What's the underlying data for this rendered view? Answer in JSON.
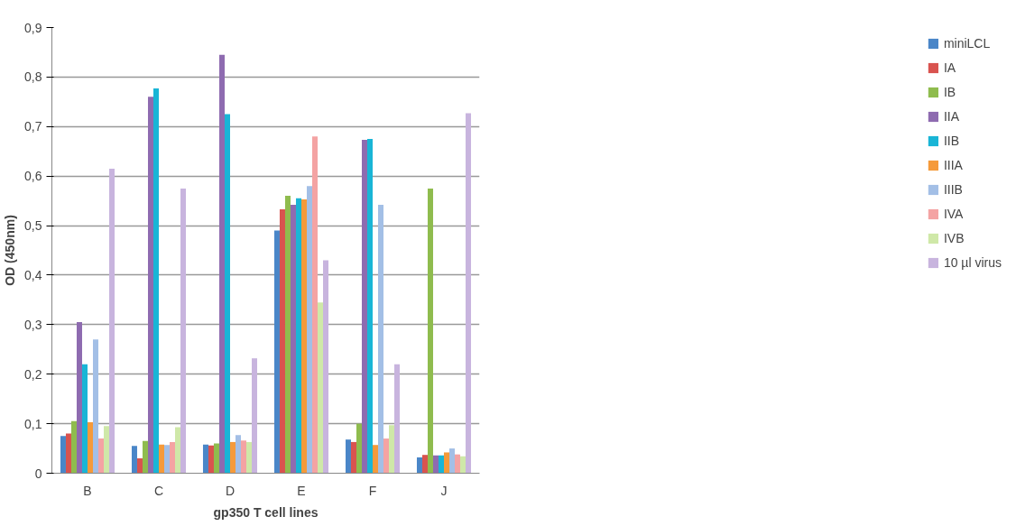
{
  "chart_data": {
    "type": "bar",
    "xlabel": "gp350 T cell lines",
    "ylabel": "OD (450nm)",
    "categories": [
      "B",
      "C",
      "D",
      "E",
      "F",
      "J"
    ],
    "series": [
      {
        "name": "miniLCL",
        "color": "#4a86c8",
        "values": [
          0.075,
          0.055,
          0.058,
          0.49,
          0.068,
          0.032
        ]
      },
      {
        "name": "IA",
        "color": "#d9534f",
        "values": [
          0.08,
          0.03,
          0.056,
          0.533,
          0.063,
          0.037
        ]
      },
      {
        "name": "IB",
        "color": "#8fbc4e",
        "values": [
          0.105,
          0.065,
          0.06,
          0.56,
          0.1,
          0.575
        ]
      },
      {
        "name": "IIA",
        "color": "#8e6bb0",
        "values": [
          0.305,
          0.76,
          0.845,
          0.542,
          0.673,
          0.036
        ]
      },
      {
        "name": "IIB",
        "color": "#19b5d6",
        "values": [
          0.22,
          0.777,
          0.725,
          0.555,
          0.675,
          0.036
        ]
      },
      {
        "name": "IIIA",
        "color": "#f59a3a",
        "values": [
          0.103,
          0.058,
          0.063,
          0.553,
          0.057,
          0.042
        ]
      },
      {
        "name": "IIIB",
        "color": "#a3bfe6",
        "values": [
          0.27,
          0.057,
          0.077,
          0.58,
          0.542,
          0.05
        ]
      },
      {
        "name": "IVA",
        "color": "#f4a3a3",
        "values": [
          0.07,
          0.063,
          0.066,
          0.68,
          0.07,
          0.038
        ]
      },
      {
        "name": "IVB",
        "color": "#cfe8a8",
        "values": [
          0.095,
          0.093,
          0.063,
          0.345,
          0.097,
          0.034
        ]
      },
      {
        "name": "10 µl virus",
        "color": "#c8b4de",
        "values": [
          0.615,
          0.575,
          0.232,
          0.43,
          0.22,
          0.727
        ]
      }
    ],
    "ylim": [
      0,
      0.9
    ],
    "yticks": [
      {
        "value": 0,
        "label": "0"
      },
      {
        "value": 0.1,
        "label": "0,1"
      },
      {
        "value": 0.2,
        "label": "0,2"
      },
      {
        "value": 0.3,
        "label": "0,3"
      },
      {
        "value": 0.4,
        "label": "0,4"
      },
      {
        "value": 0.5,
        "label": "0,5"
      },
      {
        "value": 0.6,
        "label": "0,6"
      },
      {
        "value": 0.7,
        "label": "0,7"
      },
      {
        "value": 0.8,
        "label": "0,8"
      },
      {
        "value": 0.9,
        "label": "0,9"
      }
    ],
    "grid": "y",
    "legend": "right"
  }
}
